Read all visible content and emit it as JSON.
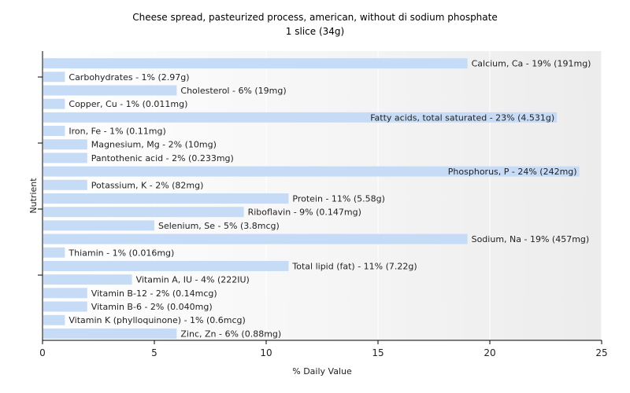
{
  "chart_data": {
    "type": "bar",
    "orientation": "horizontal",
    "title": "Cheese spread, pasteurized process, american, without di sodium phosphate",
    "subtitle": "1 slice (34g)",
    "xlabel": "% Daily Value",
    "ylabel": "Nutrient",
    "xlim": [
      0,
      25
    ],
    "xticks": [
      0,
      5,
      10,
      15,
      20,
      25
    ],
    "grid": true,
    "bar_color": "#c6dcf6",
    "categories": [
      "Calcium, Ca",
      "Carbohydrates",
      "Cholesterol",
      "Copper, Cu",
      "Fatty acids, total saturated",
      "Iron, Fe",
      "Magnesium, Mg",
      "Pantothenic acid",
      "Phosphorus, P",
      "Potassium, K",
      "Protein",
      "Riboflavin",
      "Selenium, Se",
      "Sodium, Na",
      "Thiamin",
      "Total lipid (fat)",
      "Vitamin A, IU",
      "Vitamin B-12",
      "Vitamin B-6",
      "Vitamin K (phylloquinone)",
      "Zinc, Zn"
    ],
    "values": [
      19,
      1,
      6,
      1,
      23,
      1,
      2,
      2,
      24,
      2,
      11,
      9,
      5,
      19,
      1,
      11,
      4,
      2,
      2,
      1,
      6
    ],
    "labels": [
      "Calcium, Ca - 19% (191mg)",
      "Carbohydrates - 1% (2.97g)",
      "Cholesterol - 6% (19mg)",
      "Copper, Cu - 1% (0.011mg)",
      "Fatty acids, total saturated - 23% (4.531g)",
      "Iron, Fe - 1% (0.11mg)",
      "Magnesium, Mg - 2% (10mg)",
      "Pantothenic acid - 2% (0.233mg)",
      "Phosphorus, P - 24% (242mg)",
      "Potassium, K - 2% (82mg)",
      "Protein - 11% (5.58g)",
      "Riboflavin - 9% (0.147mg)",
      "Selenium, Se - 5% (3.8mcg)",
      "Sodium, Na - 19% (457mg)",
      "Thiamin - 1% (0.016mg)",
      "Total lipid (fat) - 11% (7.22g)",
      "Vitamin A, IU - 4% (222IU)",
      "Vitamin B-12 - 2% (0.14mcg)",
      "Vitamin B-6 - 2% (0.040mg)",
      "Vitamin K (phylloquinone) - 1% (0.6mcg)",
      "Zinc, Zn - 6% (0.88mg)"
    ]
  }
}
